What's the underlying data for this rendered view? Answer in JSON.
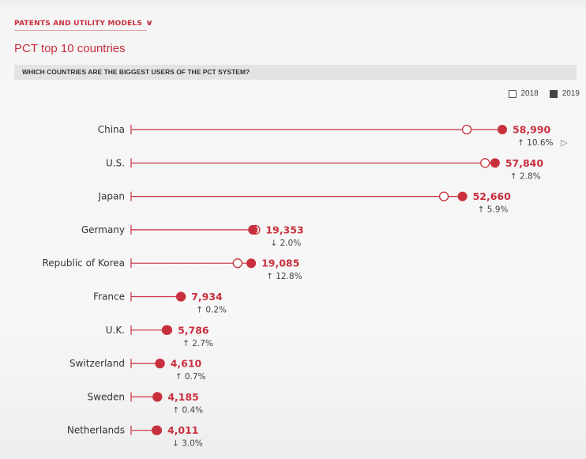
{
  "header": {
    "nav_label": "PATENTS AND UTILITY MODELS",
    "title": "PCT top 10 countries",
    "subtitle": "WHICH COUNTRIES ARE THE BIGGEST USERS OF THE PCT SYSTEM?"
  },
  "colors": {
    "accent": "#c8303d",
    "line": "#c8303d",
    "open_marker": "#c8303d",
    "text": "#333333"
  },
  "icons": {
    "nav_chevron": "chevron-down-icon",
    "cursor": "mouse-pointer-icon"
  },
  "chart_data": {
    "type": "dumbbell",
    "legend": {
      "position": "top-right",
      "entries": [
        {
          "label": "2018",
          "style": "open-square"
        },
        {
          "label": "2019",
          "style": "filled-square"
        }
      ]
    },
    "xlim": [
      0,
      62000
    ],
    "grid": false,
    "rows": [
      {
        "country": "China",
        "y2018": 53345,
        "y2019": 58990,
        "value_label": "58,990",
        "change": "10.6%",
        "direction": "up"
      },
      {
        "country": "U.S.",
        "y2018": 56252,
        "y2019": 57840,
        "value_label": "57,840",
        "change": "2.8%",
        "direction": "up"
      },
      {
        "country": "Japan",
        "y2018": 49708,
        "y2019": 52660,
        "value_label": "52,660",
        "change": "5.9%",
        "direction": "up"
      },
      {
        "country": "Germany",
        "y2018": 19750,
        "y2019": 19353,
        "value_label": "19,353",
        "change": "2.0%",
        "direction": "down"
      },
      {
        "country": "Republic of Korea",
        "y2018": 16919,
        "y2019": 19085,
        "value_label": "19,085",
        "change": "12.8%",
        "direction": "up"
      },
      {
        "country": "France",
        "y2018": 7918,
        "y2019": 7934,
        "value_label": "7,934",
        "change": "0.2%",
        "direction": "up"
      },
      {
        "country": "U.K.",
        "y2018": 5633,
        "y2019": 5786,
        "value_label": "5,786",
        "change": "2.7%",
        "direction": "up"
      },
      {
        "country": "Switzerland",
        "y2018": 4578,
        "y2019": 4610,
        "value_label": "4,610",
        "change": "0.7%",
        "direction": "up"
      },
      {
        "country": "Sweden",
        "y2018": 4169,
        "y2019": 4185,
        "value_label": "4,185",
        "change": "0.4%",
        "direction": "up"
      },
      {
        "country": "Netherlands",
        "y2018": 4135,
        "y2019": 4011,
        "value_label": "4,011",
        "change": "3.0%",
        "direction": "down"
      }
    ]
  }
}
